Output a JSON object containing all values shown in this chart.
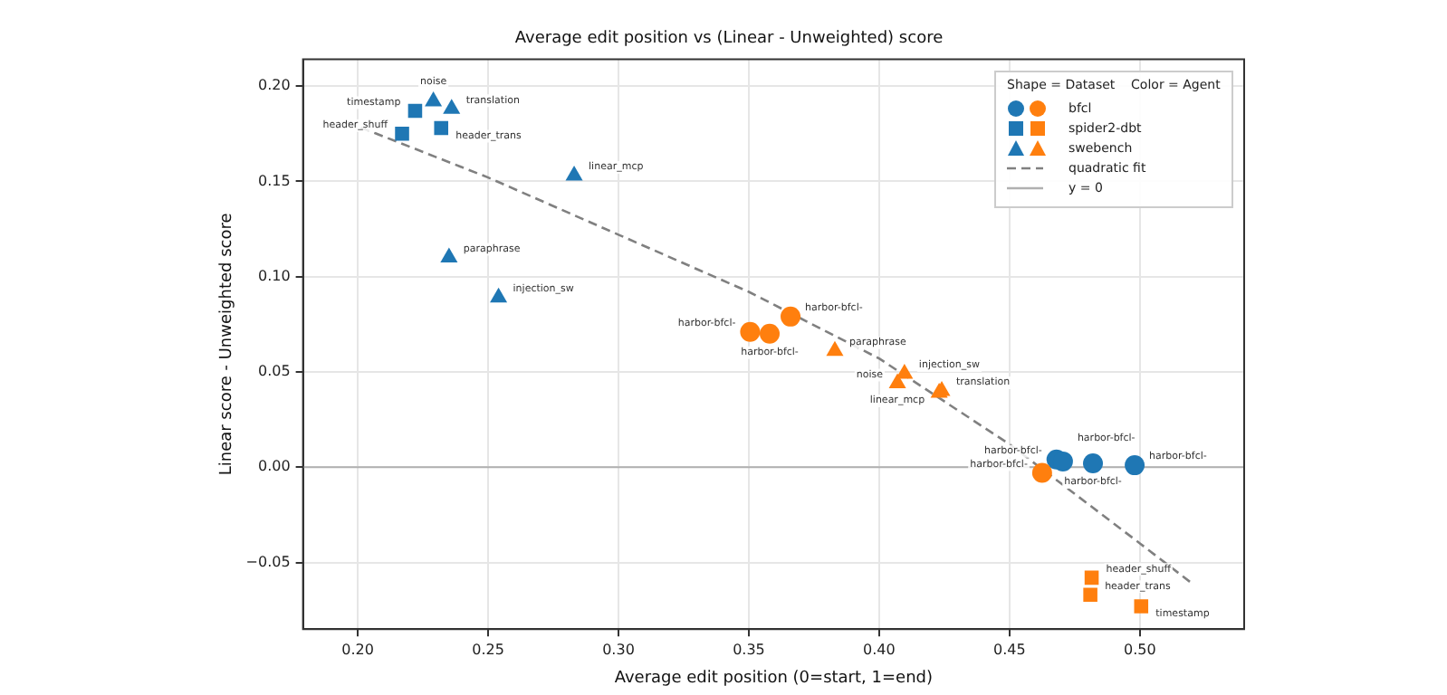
{
  "chart_data": {
    "type": "scatter",
    "title": "Average edit position vs (Linear - Unweighted) score",
    "xlabel": "Average edit position (0=start, 1=end)",
    "ylabel": "Linear score - Unweighted score",
    "legend_title": "Shape = Dataset    Color = Agent",
    "xlim": [
      0.179,
      0.54
    ],
    "ylim": [
      -0.085,
      0.214
    ],
    "xticks": [
      {
        "value": 0.2,
        "label": "0.20"
      },
      {
        "value": 0.25,
        "label": "0.25"
      },
      {
        "value": 0.3,
        "label": "0.30"
      },
      {
        "value": 0.35,
        "label": "0.35"
      },
      {
        "value": 0.4,
        "label": "0.40"
      },
      {
        "value": 0.45,
        "label": "0.45"
      },
      {
        "value": 0.5,
        "label": "0.50"
      }
    ],
    "yticks": [
      {
        "value": -0.05,
        "label": "−0.05"
      },
      {
        "value": 0,
        "label": "0.00"
      },
      {
        "value": 0.05,
        "label": "0.05"
      },
      {
        "value": 0.1,
        "label": "0.10"
      },
      {
        "value": 0.15,
        "label": "0.15"
      },
      {
        "value": 0.2,
        "label": "0.20"
      }
    ],
    "grid": true,
    "legend": "top right",
    "series": [
      {
        "name": "bfcl",
        "marker": "circle",
        "x": [
          0.468,
          0.4705,
          0.482,
          0.498,
          0.3505,
          0.358,
          0.366,
          0.4625
        ],
        "values": [
          0.004,
          0.003,
          0.002,
          0.001,
          0.071,
          0.07,
          0.079,
          -0.003
        ],
        "colors": [
          "#1f77b4",
          "#1f77b4",
          "#1f77b4",
          "#1f77b4",
          "#ff7f0e",
          "#ff7f0e",
          "#ff7f0e",
          "#ff7f0e"
        ],
        "value_labels": [
          "harbor-bfcl-",
          "harbor-bfcl-",
          "harbor-bfcl-",
          "harbor-bfcl-",
          "harbor-bfcl-",
          "harbor-bfcl-",
          "harbor-bfcl-",
          "harbor-bfcl-"
        ]
      },
      {
        "name": "spider2-dbt",
        "marker": "square",
        "x": [
          0.222,
          0.217,
          0.232,
          0.4815,
          0.481,
          0.5005
        ],
        "values": [
          0.187,
          0.175,
          0.178,
          -0.058,
          -0.067,
          -0.073
        ],
        "colors": [
          "#1f77b4",
          "#1f77b4",
          "#1f77b4",
          "#ff7f0e",
          "#ff7f0e",
          "#ff7f0e"
        ],
        "value_labels": [
          "timestamp",
          "header_shuff",
          "header_trans",
          "header_shuff",
          "header_trans",
          "timestamp"
        ]
      },
      {
        "name": "swebench",
        "marker": "triangle",
        "x": [
          0.229,
          0.236,
          0.283,
          0.235,
          0.254,
          0.383,
          0.407,
          0.4097,
          0.424,
          0.423
        ],
        "values": [
          0.192,
          0.188,
          0.153,
          0.11,
          0.089,
          0.061,
          0.044,
          0.049,
          0.04,
          0.039
        ],
        "colors": [
          "#1f77b4",
          "#1f77b4",
          "#1f77b4",
          "#1f77b4",
          "#1f77b4",
          "#ff7f0e",
          "#ff7f0e",
          "#ff7f0e",
          "#ff7f0e",
          "#ff7f0e"
        ],
        "value_labels": [
          "noise",
          "translation",
          "linear_mcp",
          "paraphrase",
          "injection_sw",
          "paraphrase",
          "noise",
          "injection_sw",
          "translation",
          "linear_mcp"
        ]
      },
      {
        "name": "quadratic fit",
        "type": "line",
        "line_style": "dashed",
        "marker": "none",
        "color": "#808080",
        "x": [
          0.196,
          0.25,
          0.3,
          0.35,
          0.4,
          0.45,
          0.5,
          0.52
        ],
        "values": [
          0.181,
          0.152,
          0.122,
          0.092,
          0.057,
          0.012,
          -0.04,
          -0.061
        ]
      }
    ],
    "ref_lines": [
      {
        "axis": "y",
        "value": 0,
        "label": "y = 0",
        "color": "#b0b0b0"
      }
    ]
  }
}
